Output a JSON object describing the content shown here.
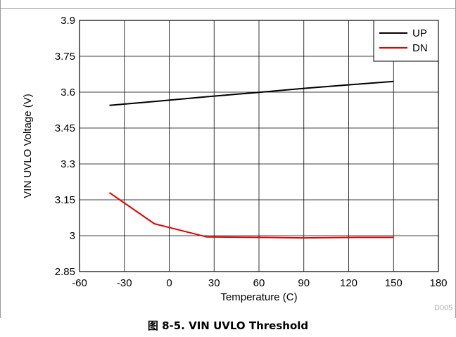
{
  "chart_data": {
    "type": "line",
    "xlabel": "Temperature (C)",
    "ylabel": "VIN UVLO Voltage (V)",
    "xlim": [
      -60,
      180
    ],
    "ylim": [
      2.85,
      3.9
    ],
    "xticks": [
      "-60",
      "-30",
      "0",
      "30",
      "60",
      "90",
      "120",
      "150",
      "180"
    ],
    "yticks": [
      "3.9",
      "3.75",
      "3.6",
      "3.45",
      "3.3",
      "3.15",
      "3",
      "2.85"
    ],
    "grid": true,
    "legend_position": "top-right",
    "series": [
      {
        "name": "UP",
        "color": "#000000",
        "x": [
          -40,
          -10,
          25,
          60,
          90,
          125,
          150
        ],
        "y": [
          3.545,
          3.561,
          3.581,
          3.599,
          3.616,
          3.633,
          3.645
        ]
      },
      {
        "name": "DN",
        "color": "#e00000",
        "x": [
          -40,
          -10,
          25,
          60,
          90,
          125,
          150
        ],
        "y": [
          3.18,
          3.05,
          2.995,
          2.993,
          2.991,
          2.993,
          2.993
        ]
      }
    ]
  },
  "code": "D005",
  "caption": {
    "prefix": "图",
    "text": " 8-5. VIN UVLO Threshold"
  }
}
